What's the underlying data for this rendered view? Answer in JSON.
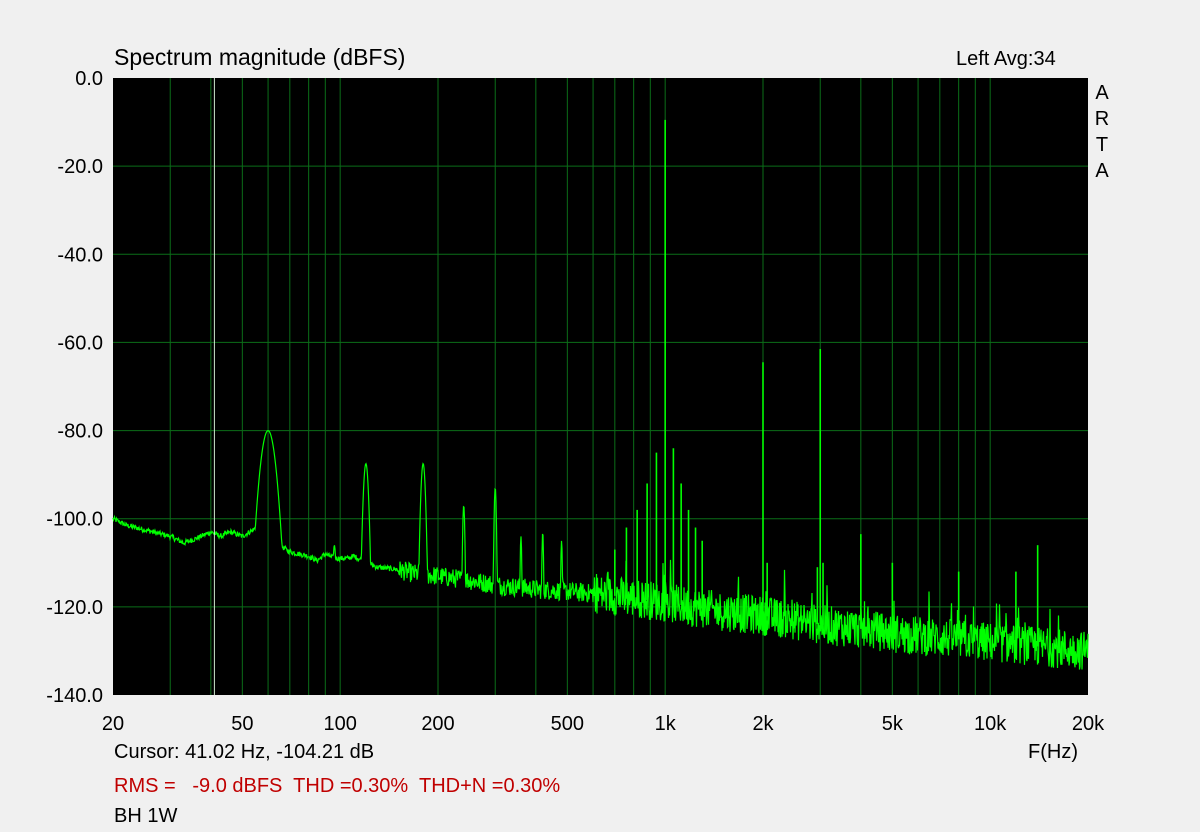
{
  "chart_data": {
    "type": "line",
    "title": "Spectrum magnitude (dBFS)",
    "channel_label": "Left  Avg:34",
    "brand_letters": [
      "A",
      "R",
      "T",
      "A"
    ],
    "xlabel": "F(Hz)",
    "x_scale": "log",
    "xlim": [
      20,
      20000
    ],
    "ylim": [
      -140,
      0
    ],
    "y_ticks": [
      {
        "value": 0,
        "label": "0.0"
      },
      {
        "value": -20,
        "label": "-20.0"
      },
      {
        "value": -40,
        "label": "-40.0"
      },
      {
        "value": -60,
        "label": "-60.0"
      },
      {
        "value": -80,
        "label": "-80.0"
      },
      {
        "value": -100,
        "label": "-100.0"
      },
      {
        "value": -120,
        "label": "-120.0"
      },
      {
        "value": -140,
        "label": "-140.0"
      }
    ],
    "x_ticks": [
      {
        "value": 20,
        "label": "20"
      },
      {
        "value": 50,
        "label": "50"
      },
      {
        "value": 100,
        "label": "100"
      },
      {
        "value": 200,
        "label": "200"
      },
      {
        "value": 500,
        "label": "500"
      },
      {
        "value": 1000,
        "label": "1k"
      },
      {
        "value": 2000,
        "label": "2k"
      },
      {
        "value": 5000,
        "label": "5k"
      },
      {
        "value": 10000,
        "label": "10k"
      },
      {
        "value": 20000,
        "label": "20k"
      }
    ],
    "grid": true,
    "background": "#000000",
    "grid_color": "#0b6e18",
    "trace_color": "#00ff00",
    "cursor_frequency": 41.02,
    "noise_floor": [
      [
        20,
        -100
      ],
      [
        22,
        -101.5
      ],
      [
        25,
        -102.5
      ],
      [
        30,
        -104
      ],
      [
        33,
        -105.5
      ],
      [
        36,
        -104.5
      ],
      [
        40,
        -103
      ],
      [
        43,
        -104
      ],
      [
        46,
        -103
      ],
      [
        50,
        -104
      ],
      [
        54,
        -102.5
      ],
      [
        57,
        -101
      ],
      [
        65,
        -106
      ],
      [
        70,
        -107.5
      ],
      [
        80,
        -108.5
      ],
      [
        85,
        -109.5
      ],
      [
        90,
        -108
      ],
      [
        96,
        -109
      ],
      [
        105,
        -109
      ],
      [
        110,
        -108.5
      ],
      [
        130,
        -111
      ],
      [
        150,
        -111.5
      ],
      [
        170,
        -112.5
      ],
      [
        200,
        -113
      ],
      [
        250,
        -114
      ],
      [
        300,
        -115
      ],
      [
        400,
        -116
      ],
      [
        500,
        -116.5
      ],
      [
        600,
        -117
      ],
      [
        700,
        -117.5
      ],
      [
        800,
        -118
      ],
      [
        1000,
        -119
      ],
      [
        1200,
        -120
      ],
      [
        1500,
        -121
      ],
      [
        2000,
        -122
      ],
      [
        3000,
        -124
      ],
      [
        4000,
        -125
      ],
      [
        5000,
        -126
      ],
      [
        7000,
        -127
      ],
      [
        10000,
        -128
      ],
      [
        14000,
        -129
      ],
      [
        20000,
        -130
      ]
    ],
    "peaks": [
      {
        "freq": 60,
        "db": -80,
        "width": 0.025
      },
      {
        "freq": 96,
        "db": -106,
        "width": 0.006
      },
      {
        "freq": 120,
        "db": -87.5,
        "width": 0.009
      },
      {
        "freq": 180,
        "db": -87.5,
        "width": 0.008
      },
      {
        "freq": 240,
        "db": -97,
        "width": 0.004
      },
      {
        "freq": 300,
        "db": -93,
        "width": 0.004
      },
      {
        "freq": 360,
        "db": -104,
        "width": 0.003
      },
      {
        "freq": 420,
        "db": -103,
        "width": 0.003
      },
      {
        "freq": 480,
        "db": -105,
        "width": 0.003
      }
    ],
    "spikes": [
      {
        "freq": 1000,
        "db": -9.5
      },
      {
        "freq": 2000,
        "db": -64.5
      },
      {
        "freq": 3000,
        "db": -61.5
      },
      {
        "freq": 14000,
        "db": -106
      },
      {
        "freq": 940,
        "db": -85
      },
      {
        "freq": 1060,
        "db": -84
      },
      {
        "freq": 880,
        "db": -92
      },
      {
        "freq": 1120,
        "db": -92
      },
      {
        "freq": 820,
        "db": -98
      },
      {
        "freq": 1180,
        "db": -98
      },
      {
        "freq": 760,
        "db": -102
      },
      {
        "freq": 1240,
        "db": -102
      },
      {
        "freq": 700,
        "db": -107
      },
      {
        "freq": 1300,
        "db": -105
      },
      {
        "freq": 4000,
        "db": -103.5
      },
      {
        "freq": 2060,
        "db": -110
      },
      {
        "freq": 2940,
        "db": -111
      },
      {
        "freq": 3060,
        "db": -110
      },
      {
        "freq": 5000,
        "db": -110
      },
      {
        "freq": 8000,
        "db": -112
      },
      {
        "freq": 12000,
        "db": -112
      }
    ]
  },
  "cursor_readout": "Cursor: 41.02 Hz, -104.21 dB",
  "stats": {
    "rms": "RMS =   -9.0 dBFS",
    "thd": "THD =0.30%",
    "thdn": "THD+N =0.30%"
  },
  "device_label": "BH 1W"
}
